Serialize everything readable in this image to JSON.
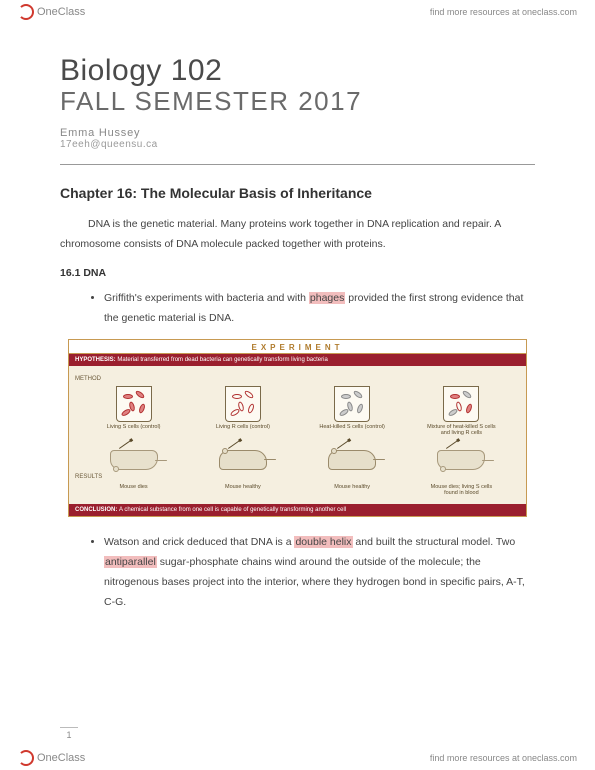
{
  "brand": {
    "name": "OneClass",
    "tagline": "find more resources at oneclass.com"
  },
  "doc": {
    "course_title": "Biology 102",
    "semester": "FALL SEMESTER 2017",
    "author": "Emma Hussey",
    "email": "17eeh@queensu.ca",
    "chapter_title": "Chapter 16: The Molecular Basis of Inheritance",
    "intro": "DNA is the genetic material. Many proteins work together in DNA replication and repair. A chromosome consists of DNA molecule packed together with proteins.",
    "section_label": "16.1 DNA",
    "bullet1_pre": "Griffith's experiments with bacteria and with ",
    "bullet1_hl": "phages",
    "bullet1_post": " provided the first strong evidence that the genetic material is DNA.",
    "bullet2_pre": "Watson and crick deduced that DNA is a ",
    "bullet2_hl1": "double helix",
    "bullet2_mid": " and built the structural model. Two ",
    "bullet2_hl2": "antiparallel",
    "bullet2_post": " sugar-phosphate chains wind around the outside of the molecule; the nitrogenous bases project into the interior, where they hydrogen bond in specific pairs, A-T, C-G.",
    "page_num": "1"
  },
  "experiment": {
    "header": "EXPERIMENT",
    "hypothesis_label": "HYPOTHESIS:",
    "hypothesis_text": "Material transferred from dead bacteria can genetically transform living bacteria",
    "method_label": "METHOD",
    "results_label": "RESULTS",
    "conclusion_label": "CONCLUSION:",
    "conclusion_text": "A chemical substance from one cell is capable of genetically transforming another cell",
    "beakers": [
      {
        "label": "Living S cells (control)",
        "bact_style": "red",
        "mouse": "dead",
        "result": "Mouse dies"
      },
      {
        "label": "Living R cells (control)",
        "bact_style": "outline",
        "mouse": "alive",
        "result": "Mouse healthy"
      },
      {
        "label": "Heat-killed S cells (control)",
        "bact_style": "grey",
        "mouse": "alive",
        "result": "Mouse healthy"
      },
      {
        "label": "Mixture of heat-killed S cells and living R cells",
        "bact_style": "mix",
        "mouse": "dead",
        "result": "Mouse dies; living S cells found in blood"
      }
    ],
    "colors": {
      "border": "#c79a52",
      "banner": "#9a1f2e",
      "body_bg": "#f5efe0",
      "text": "#5a4a2a"
    }
  },
  "highlight_color": "#f2bdbd"
}
